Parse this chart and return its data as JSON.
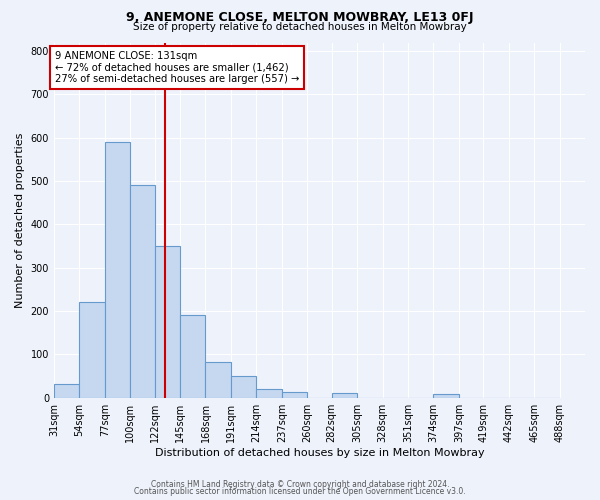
{
  "title": "9, ANEMONE CLOSE, MELTON MOWBRAY, LE13 0FJ",
  "subtitle": "Size of property relative to detached houses in Melton Mowbray",
  "xlabel": "Distribution of detached houses by size in Melton Mowbray",
  "ylabel": "Number of detached properties",
  "bin_labels": [
    "31sqm",
    "54sqm",
    "77sqm",
    "100sqm",
    "122sqm",
    "145sqm",
    "168sqm",
    "191sqm",
    "214sqm",
    "237sqm",
    "260sqm",
    "282sqm",
    "305sqm",
    "328sqm",
    "351sqm",
    "374sqm",
    "397sqm",
    "419sqm",
    "442sqm",
    "465sqm",
    "488sqm"
  ],
  "bar_values": [
    32,
    220,
    590,
    490,
    350,
    190,
    83,
    50,
    20,
    13,
    0,
    11,
    0,
    0,
    0,
    9,
    0,
    0,
    0,
    0,
    0
  ],
  "bar_color": "#c5d8f0",
  "bar_edge_color": "#6699cc",
  "vline_color": "#cc0000",
  "annotation_title": "9 ANEMONE CLOSE: 131sqm",
  "annotation_line1": "← 72% of detached houses are smaller (1,462)",
  "annotation_line2": "27% of semi-detached houses are larger (557) →",
  "annotation_box_facecolor": "white",
  "annotation_box_edgecolor": "#cc0000",
  "ylim": [
    0,
    820
  ],
  "yticks": [
    0,
    100,
    200,
    300,
    400,
    500,
    600,
    700,
    800
  ],
  "footer1": "Contains HM Land Registry data © Crown copyright and database right 2024.",
  "footer2": "Contains public sector information licensed under the Open Government Licence v3.0.",
  "bg_color": "#eef2fb",
  "bin_starts": [
    31,
    54,
    77,
    100,
    122,
    145,
    168,
    191,
    214,
    237,
    260,
    282,
    305,
    328,
    351,
    374,
    397,
    419,
    442,
    465,
    488
  ]
}
